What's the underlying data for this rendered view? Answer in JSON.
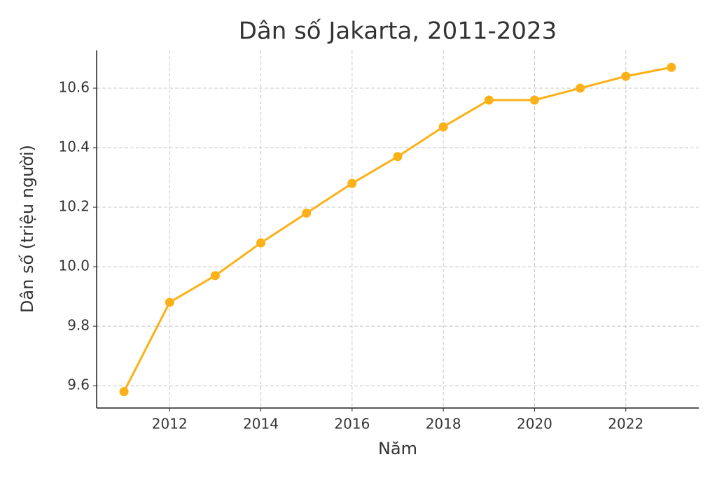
{
  "chart_data": {
    "type": "line",
    "title": "Dân số Jakarta, 2011-2023",
    "x_label": "Năm",
    "y_label": "Dân số (triệu người)",
    "series": [
      {
        "name": "Dân số",
        "color": "#fbb117",
        "x": [
          2011,
          2012,
          2013,
          2014,
          2015,
          2016,
          2017,
          2018,
          2019,
          2020,
          2021,
          2022,
          2023
        ],
        "values": [
          9.58,
          9.88,
          9.97,
          10.08,
          10.18,
          10.28,
          10.37,
          10.47,
          10.56,
          10.56,
          10.6,
          10.64,
          10.67
        ]
      }
    ],
    "xlim": [
      2010.4,
      2023.6
    ],
    "xticks": [
      2012,
      2014,
      2016,
      2018,
      2020,
      2022
    ],
    "ylim": [
      9.525,
      10.727
    ],
    "yticks": [
      9.6,
      9.8,
      {
        "value": 10,
        "label": "10.0"
      },
      10.2,
      10.4,
      10.6
    ],
    "grid": true
  }
}
